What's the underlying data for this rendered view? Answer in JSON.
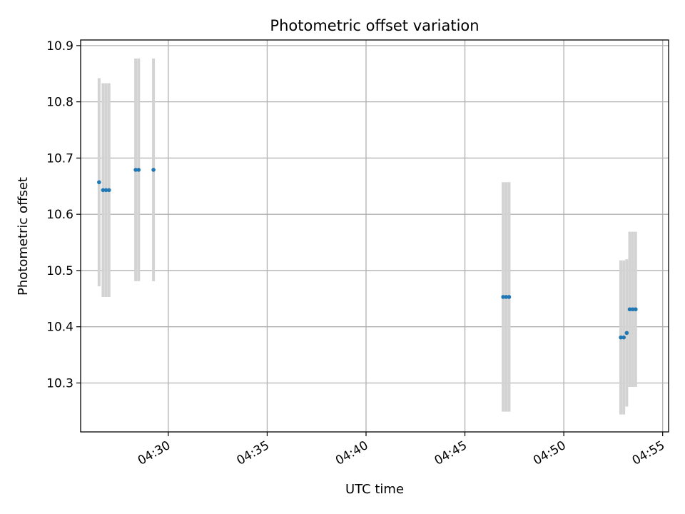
{
  "chart_data": {
    "type": "scatter",
    "title": "Photometric offset variation",
    "xlabel": "UTC time",
    "ylabel": "Photometric offset",
    "x_ticks": [
      "04:30",
      "04:35",
      "04:40",
      "04:45",
      "04:50",
      "04:55"
    ],
    "y_ticks": [
      "10.3",
      "10.4",
      "10.5",
      "10.6",
      "10.7",
      "10.8",
      "10.9"
    ],
    "xlim": [
      "04:25:34",
      "04:55:18"
    ],
    "ylim": [
      10.213,
      10.91
    ],
    "grid": true,
    "point_color": "#1f77b4",
    "errorbar_color": "#d3d3d3",
    "points": [
      {
        "x": "04:26:30",
        "y": 10.657,
        "err": 0.185
      },
      {
        "x": "04:26:42",
        "y": 10.643,
        "err": 0.19
      },
      {
        "x": "04:26:51",
        "y": 10.643,
        "err": 0.19
      },
      {
        "x": "04:27:00",
        "y": 10.643,
        "err": 0.19
      },
      {
        "x": "04:28:21",
        "y": 10.679,
        "err": 0.198
      },
      {
        "x": "04:28:30",
        "y": 10.679,
        "err": 0.198
      },
      {
        "x": "04:29:15",
        "y": 10.679,
        "err": 0.198
      },
      {
        "x": "04:46:56",
        "y": 10.453,
        "err": 0.204
      },
      {
        "x": "04:47:05",
        "y": 10.453,
        "err": 0.204
      },
      {
        "x": "04:47:14",
        "y": 10.453,
        "err": 0.204
      },
      {
        "x": "04:52:53",
        "y": 10.381,
        "err": 0.137
      },
      {
        "x": "04:53:02",
        "y": 10.381,
        "err": 0.137
      },
      {
        "x": "04:53:11",
        "y": 10.389,
        "err": 0.131
      },
      {
        "x": "04:53:20",
        "y": 10.431,
        "err": 0.138
      },
      {
        "x": "04:53:29",
        "y": 10.431,
        "err": 0.138
      },
      {
        "x": "04:53:38",
        "y": 10.431,
        "err": 0.138
      }
    ]
  }
}
